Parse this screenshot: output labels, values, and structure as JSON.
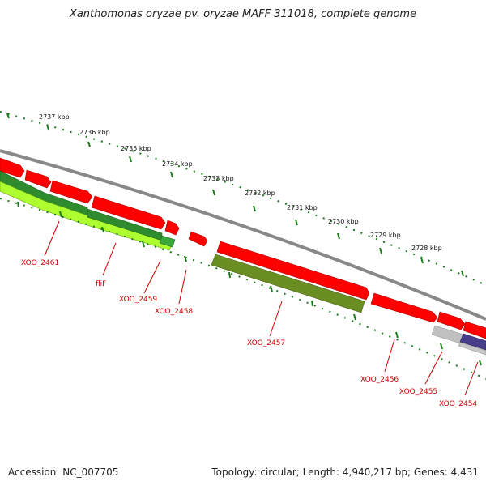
{
  "title": "Xanthomonas oryzae pv. oryzae MAFF 311018, complete genome",
  "footer": {
    "accession": "Accession: NC_007705",
    "topology": "Topology: circular; Length: 4,940,217 bp; Genes: 4,431"
  },
  "ruler": {
    "ticks": [
      "2737 kbp",
      "2736 kbp",
      "2735 kbp",
      "2734 kbp",
      "2733 kbp",
      "2732 kbp",
      "2731 kbp",
      "2730 kbp",
      "2729 kbp",
      "2728 kbp"
    ]
  },
  "genes": [
    {
      "label": "XOO_2461",
      "color": "#2e8b2e"
    },
    {
      "label": "fliF",
      "color": "#adff2f"
    },
    {
      "label": "XOO_2459",
      "color": "#2e8b2e"
    },
    {
      "label": "XOO_2458",
      "color": "#ff0000"
    },
    {
      "label": "XOO_2457",
      "color": "#6b8e23"
    },
    {
      "label": "XOO_2456",
      "color": "#ff0000"
    },
    {
      "label": "XOO_2455",
      "color": "#c0c0c0"
    },
    {
      "label": "XOO_2454",
      "color": "#483d8b"
    }
  ],
  "colors": {
    "backbone": "#888888",
    "forward_strand": "#ff0000",
    "ruler_ticks": "#1a7a1a",
    "label_text": "#cc0000"
  }
}
